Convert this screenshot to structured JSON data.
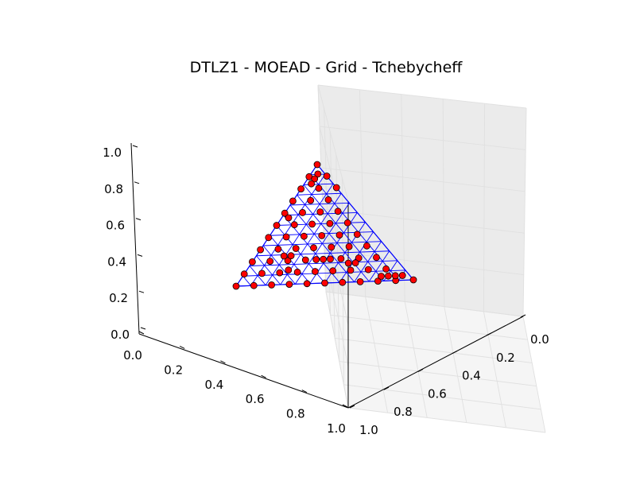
{
  "chart_data": {
    "type": "scatter",
    "projection": "3d",
    "title": "DTLZ1 - MOEAD - Grid - Tchebycheff",
    "xlabel": "",
    "ylabel": "",
    "zlabel": "",
    "xlim": [
      0,
      1
    ],
    "ylim": [
      0,
      1
    ],
    "zlim": [
      0,
      1
    ],
    "x_ticks": [
      "0.0",
      "0.2",
      "0.4",
      "0.6",
      "0.8",
      "1.0"
    ],
    "y_ticks": [
      "0.0",
      "0.2",
      "0.4",
      "0.6",
      "0.8",
      "1.0"
    ],
    "z_ticks": [
      "0.0",
      "0.2",
      "0.4",
      "0.6",
      "0.8",
      "1.0"
    ],
    "grid": true,
    "reference_front": {
      "description": "plane x + y + z = 0.5 drawn as a mesh",
      "sum": 0.5,
      "color": "#0000ff"
    },
    "points_color": "#ff0000",
    "series": [
      {
        "x": [
          0.5,
          0,
          0,
          0.05,
          0.1,
          0.15,
          0.2,
          0.25,
          0.3,
          0.35,
          0.4,
          0.45,
          0.45,
          0.4,
          0.35,
          0.3,
          0.25,
          0.2,
          0.15,
          0.1,
          0.05,
          0.0,
          0.0,
          0.05,
          0.1,
          0.15,
          0.2,
          0.25,
          0.3,
          0.35,
          0.4,
          0.05,
          0.1,
          0.15,
          0.2,
          0.25,
          0.3,
          0.35,
          0.05,
          0.1,
          0.15,
          0.2,
          0.25,
          0.3,
          0.05,
          0.1,
          0.15,
          0.2,
          0.25,
          0.05,
          0.1,
          0.15,
          0.2,
          0.05,
          0.1,
          0.15,
          0.05,
          0.1,
          0.05,
          0.02,
          0.04,
          0.06,
          0.08,
          0.02,
          0.04,
          0.06,
          0.2,
          0.22,
          0.18,
          0.28,
          0.3,
          0.32,
          0.12,
          0.14
        ],
        "y": [
          0,
          0.5,
          0,
          0.45,
          0.4,
          0.35,
          0.3,
          0.25,
          0.2,
          0.15,
          0.1,
          0.05,
          0.0,
          0.0,
          0.0,
          0.0,
          0.0,
          0.0,
          0.0,
          0.0,
          0.0,
          0.05,
          0.1,
          0.05,
          0.05,
          0.05,
          0.05,
          0.05,
          0.05,
          0.05,
          0.05,
          0.1,
          0.1,
          0.1,
          0.1,
          0.1,
          0.1,
          0.1,
          0.15,
          0.15,
          0.15,
          0.15,
          0.15,
          0.15,
          0.2,
          0.2,
          0.2,
          0.2,
          0.2,
          0.25,
          0.25,
          0.25,
          0.25,
          0.3,
          0.3,
          0.3,
          0.35,
          0.35,
          0.4,
          0.46,
          0.44,
          0.42,
          0.4,
          0.02,
          0.02,
          0.02,
          0.02,
          0.18,
          0.22,
          0.1,
          0.08,
          0.12,
          0.3,
          0.28
        ],
        "z": [
          0,
          0,
          0.5,
          0.0,
          0.0,
          0.0,
          0.0,
          0.0,
          0.0,
          0.0,
          0.0,
          0.0,
          0.05,
          0.1,
          0.15,
          0.2,
          0.25,
          0.3,
          0.35,
          0.4,
          0.45,
          0.45,
          0.4,
          0.4,
          0.35,
          0.3,
          0.25,
          0.2,
          0.15,
          0.1,
          0.05,
          0.35,
          0.3,
          0.25,
          0.2,
          0.15,
          0.1,
          0.05,
          0.3,
          0.25,
          0.2,
          0.15,
          0.1,
          0.05,
          0.25,
          0.2,
          0.15,
          0.1,
          0.05,
          0.2,
          0.15,
          0.1,
          0.05,
          0.15,
          0.1,
          0.05,
          0.1,
          0.05,
          0.05,
          0.02,
          0.02,
          0.02,
          0.02,
          0.46,
          0.44,
          0.42,
          0.28,
          0.1,
          0.1,
          0.12,
          0.12,
          0.06,
          0.08,
          0.08
        ]
      }
    ]
  }
}
